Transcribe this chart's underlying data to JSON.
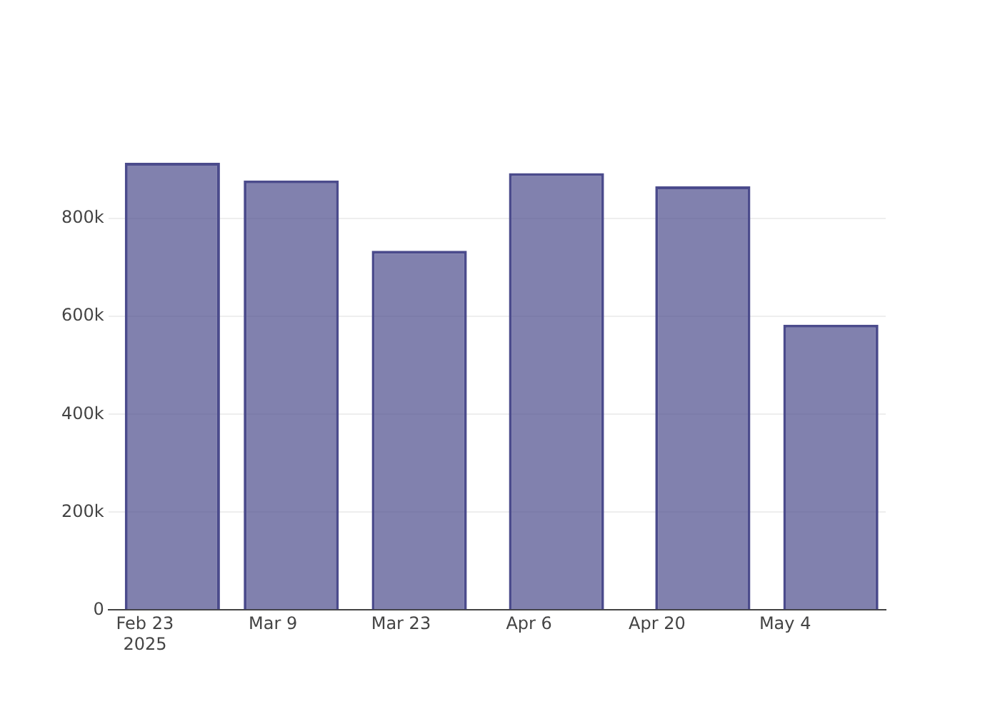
{
  "chart_data": {
    "type": "bar",
    "x": [
      "2025-02-26",
      "2025-03-11",
      "2025-03-25",
      "2025-04-09",
      "2025-04-25",
      "2025-05-09"
    ],
    "series": [
      {
        "color": "#4b4b8c",
        "values": [
          914000,
          878000,
          734000,
          893000,
          866000,
          583000
        ]
      }
    ],
    "xlim": [
      "2025-02-19",
      "2025-05-15"
    ],
    "xticks": [
      {
        "value": "2025-02-23",
        "label": "Feb 23\n2025"
      },
      {
        "value": "2025-03-09",
        "label": "Mar 9"
      },
      {
        "value": "2025-03-23",
        "label": "Mar 23"
      },
      {
        "value": "2025-04-06",
        "label": "Apr 6"
      },
      {
        "value": "2025-04-20",
        "label": "Apr 20"
      },
      {
        "value": "2025-05-04",
        "label": "May 4"
      }
    ],
    "ylim": [
      0,
      914000
    ],
    "yticks": [
      {
        "value": 0,
        "label": "0"
      },
      {
        "value": 200000,
        "label": "200k"
      },
      {
        "value": 400000,
        "label": "400k"
      },
      {
        "value": 600000,
        "label": "600k"
      },
      {
        "value": 800000,
        "label": "800k"
      }
    ],
    "grid": "y",
    "legend": false
  }
}
